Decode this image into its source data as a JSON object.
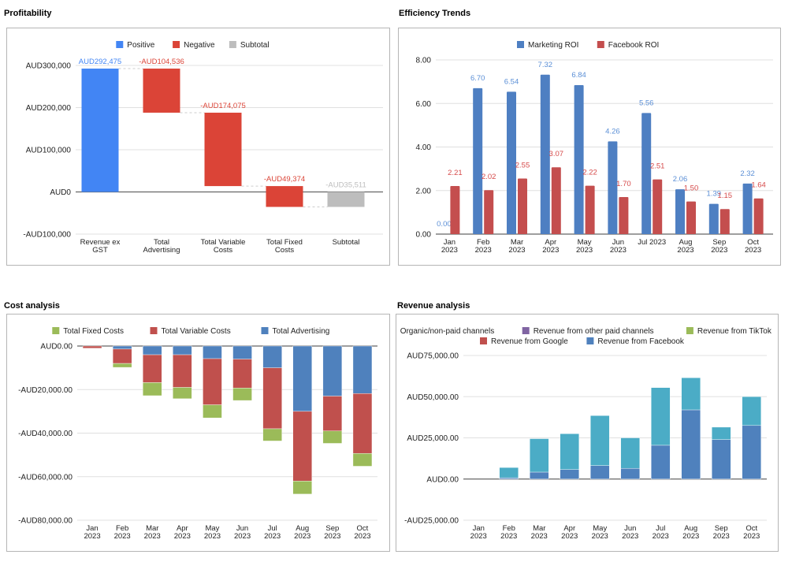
{
  "sections": {
    "profitability": "Profitability",
    "efficiency": "Efficiency Trends",
    "cost": "Cost analysis",
    "revenue": "Revenue analysis"
  },
  "chart_data": [
    {
      "id": "profitability",
      "type": "bar",
      "subtype": "waterfall",
      "title": "Profitability",
      "legend": [
        {
          "name": "Positive",
          "color": "#4285f4"
        },
        {
          "name": "Negative",
          "color": "#db4437"
        },
        {
          "name": "Subtotal",
          "color": "#bdbdbd"
        }
      ],
      "legend_position": "top",
      "categories": [
        "Revenue ex GST",
        "Total Advertising",
        "Total Variable Costs",
        "Total Fixed Costs",
        "Subtotal"
      ],
      "category_lines": [
        [
          "Revenue ex",
          "GST"
        ],
        [
          "Total",
          "Advertising"
        ],
        [
          "Total Variable",
          "Costs"
        ],
        [
          "Total Fixed",
          "Costs"
        ],
        [
          "Subtotal"
        ]
      ],
      "values": [
        292475,
        -104536,
        -174075,
        -49374,
        -35511
      ],
      "kinds": [
        "positive",
        "negative",
        "negative",
        "negative",
        "subtotal"
      ],
      "data_labels": [
        "AUD292,475",
        "-AUD104,536",
        "-AUD174,075",
        "-AUD49,374",
        "-AUD35,511"
      ],
      "yticks": [
        -100000,
        0,
        100000,
        200000,
        300000
      ],
      "ytick_labels": [
        "-AUD100,000",
        "AUD0",
        "AUD100,000",
        "AUD200,000",
        "AUD300,000"
      ],
      "ylim": [
        -100000,
        300000
      ],
      "grid": true
    },
    {
      "id": "efficiency",
      "type": "bar",
      "title": "Efficiency Trends",
      "legend_position": "top",
      "categories": [
        "Jan 2023",
        "Feb 2023",
        "Mar 2023",
        "Apr 2023",
        "May 2023",
        "Jun 2023",
        "Jul 2023",
        "Aug 2023",
        "Sep 2023",
        "Oct 2023"
      ],
      "category_lines": [
        [
          "Jan",
          "2023"
        ],
        [
          "Feb",
          "2023"
        ],
        [
          "Mar",
          "2023"
        ],
        [
          "Apr",
          "2023"
        ],
        [
          "May",
          "2023"
        ],
        [
          "Jun",
          "2023"
        ],
        [
          "Jul 2023"
        ],
        [
          "Aug",
          "2023"
        ],
        [
          "Sep",
          "2023"
        ],
        [
          "Oct",
          "2023"
        ]
      ],
      "series": [
        {
          "name": "Marketing ROI",
          "color": "#4e7fc2",
          "label_color": "#5b8fd6",
          "values": [
            0.0,
            6.7,
            6.54,
            7.32,
            6.84,
            4.26,
            5.56,
            2.06,
            1.39,
            2.32
          ]
        },
        {
          "name": "Facebook ROI",
          "color": "#c44e4e",
          "label_color": "#d64a4a",
          "values": [
            2.21,
            2.02,
            2.55,
            3.07,
            2.22,
            1.7,
            2.51,
            1.5,
            1.15,
            1.64
          ]
        }
      ],
      "yticks": [
        0,
        2,
        4,
        6,
        8
      ],
      "ytick_labels": [
        "0.00",
        "2.00",
        "4.00",
        "6.00",
        "8.00"
      ],
      "ylim": [
        0,
        8
      ],
      "grid": true
    },
    {
      "id": "cost",
      "type": "bar",
      "subtype": "stacked",
      "title": "Cost analysis",
      "legend_position": "top",
      "categories": [
        "Jan 2023",
        "Feb 2023",
        "Mar 2023",
        "Apr 2023",
        "May 2023",
        "Jun 2023",
        "Jul 2023",
        "Aug 2023",
        "Sep 2023",
        "Oct 2023"
      ],
      "category_lines": [
        [
          "Jan",
          "2023"
        ],
        [
          "Feb",
          "2023"
        ],
        [
          "Mar",
          "2023"
        ],
        [
          "Apr",
          "2023"
        ],
        [
          "May",
          "2023"
        ],
        [
          "Jun",
          "2023"
        ],
        [
          "Jul",
          "2023"
        ],
        [
          "Aug",
          "2023"
        ],
        [
          "Sep",
          "2023"
        ],
        [
          "Oct",
          "2023"
        ]
      ],
      "series": [
        {
          "name": "Total Fixed Costs",
          "color": "#9bbb59",
          "values": [
            0,
            -1800,
            -6000,
            -5200,
            -6000,
            -5700,
            -5600,
            -6000,
            -5700,
            -5900
          ]
        },
        {
          "name": "Total Variable Costs",
          "color": "#c0504d",
          "values": [
            -1000,
            -6600,
            -12800,
            -15000,
            -21200,
            -13300,
            -28000,
            -32000,
            -16000,
            -27500
          ]
        },
        {
          "name": "Total Advertising",
          "color": "#4f81bd",
          "values": [
            0,
            -1400,
            -4000,
            -4000,
            -5800,
            -6000,
            -10000,
            -30000,
            -23000,
            -21800
          ]
        }
      ],
      "stack_order_from_zero": [
        "Total Advertising",
        "Total Variable Costs",
        "Total Fixed Costs"
      ],
      "yticks": [
        -80000,
        -60000,
        -40000,
        -20000,
        0
      ],
      "ytick_labels": [
        "-AUD80,000.00",
        "-AUD60,000.00",
        "-AUD40,000.00",
        "-AUD20,000.00",
        "AUD0.00"
      ],
      "ylim": [
        -80000,
        0
      ],
      "grid": true
    },
    {
      "id": "revenue",
      "type": "bar",
      "subtype": "stacked",
      "title": "Revenue analysis",
      "legend_position": "top",
      "categories": [
        "Jan 2023",
        "Feb 2023",
        "Mar 2023",
        "Apr 2023",
        "May 2023",
        "Jun 2023",
        "Jul 2023",
        "Aug 2023",
        "Sep 2023",
        "Oct 2023"
      ],
      "category_lines": [
        [
          "Jan",
          "2023"
        ],
        [
          "Feb",
          "2023"
        ],
        [
          "Mar",
          "2023"
        ],
        [
          "Apr",
          "2023"
        ],
        [
          "May",
          "2023"
        ],
        [
          "Jun",
          "2023"
        ],
        [
          "Jul",
          "2023"
        ],
        [
          "Aug",
          "2023"
        ],
        [
          "Sep",
          "2023"
        ],
        [
          "Oct",
          "2023"
        ]
      ],
      "series": [
        {
          "name": "Organic/non-paid channels",
          "color": "#4bacc6",
          "values": [
            0,
            6200,
            20300,
            21700,
            30300,
            18500,
            35000,
            19500,
            7500,
            17500
          ]
        },
        {
          "name": "Revenue from other paid channels",
          "color": "#8064a2",
          "values": [
            0,
            0,
            0,
            0,
            0,
            0,
            0,
            0,
            0,
            0
          ]
        },
        {
          "name": "Revenue from TikTok",
          "color": "#9bbb59",
          "values": [
            0,
            0,
            0,
            0,
            0,
            0,
            0,
            0,
            0,
            0
          ]
        },
        {
          "name": "Revenue from Google",
          "color": "#c0504d",
          "values": [
            0,
            0,
            0,
            0,
            0,
            0,
            0,
            0,
            0,
            0
          ]
        },
        {
          "name": "Revenue from Facebook",
          "color": "#4f81bd",
          "values": [
            0,
            800,
            4200,
            5800,
            8200,
            6500,
            20500,
            42000,
            24000,
            32500
          ]
        }
      ],
      "stack_order_from_zero": [
        "Revenue from Facebook",
        "Revenue from Google",
        "Revenue from TikTok",
        "Revenue from other paid channels",
        "Organic/non-paid channels"
      ],
      "yticks": [
        -25000,
        0,
        25000,
        50000,
        75000
      ],
      "ytick_labels": [
        "-AUD25,000.00",
        "AUD0.00",
        "AUD25,000.00",
        "AUD50,000.00",
        "AUD75,000.00"
      ],
      "ylim": [
        -25000,
        75000
      ],
      "grid": true
    }
  ]
}
